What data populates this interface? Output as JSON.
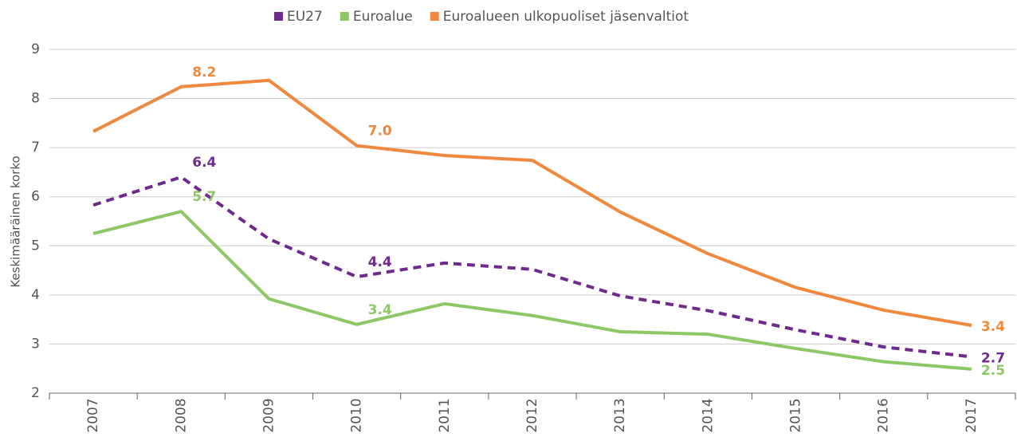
{
  "chart_data": {
    "type": "line",
    "ylabel": "Keskimääräinen korko",
    "categories": [
      "2007",
      "2008",
      "2009",
      "2010",
      "2011",
      "2012",
      "2013",
      "2014",
      "2015",
      "2016",
      "2017"
    ],
    "series": [
      {
        "name": "EU27",
        "color": "#6e2a8d",
        "dash": true,
        "values": [
          5.83,
          6.4,
          5.14,
          4.37,
          4.65,
          4.52,
          3.98,
          3.68,
          3.29,
          2.94,
          2.74
        ],
        "value_labels": [
          null,
          "6.4",
          null,
          "4.4",
          null,
          null,
          null,
          null,
          null,
          null,
          "2.7"
        ]
      },
      {
        "name": "Euroalue",
        "color": "#8cc866",
        "dash": false,
        "values": [
          5.25,
          5.7,
          3.92,
          3.4,
          3.82,
          3.58,
          3.25,
          3.2,
          2.91,
          2.64,
          2.49
        ],
        "value_labels": [
          null,
          "5.7",
          null,
          "3.4",
          null,
          null,
          null,
          null,
          null,
          null,
          "2.5"
        ]
      },
      {
        "name": "Euroalueen ulkopuoliset jäsenvaltiot",
        "color": "#f0883e",
        "dash": false,
        "values": [
          7.33,
          8.24,
          8.37,
          7.04,
          6.84,
          6.74,
          5.69,
          4.84,
          4.15,
          3.69,
          3.38
        ],
        "value_labels": [
          null,
          "8.2",
          null,
          "7.0",
          null,
          null,
          null,
          null,
          null,
          null,
          "3.4"
        ]
      }
    ],
    "ylim": [
      2,
      9
    ],
    "yticks": [
      2,
      3,
      4,
      5,
      6,
      7,
      8,
      9
    ],
    "grid": true,
    "legend": "top"
  }
}
